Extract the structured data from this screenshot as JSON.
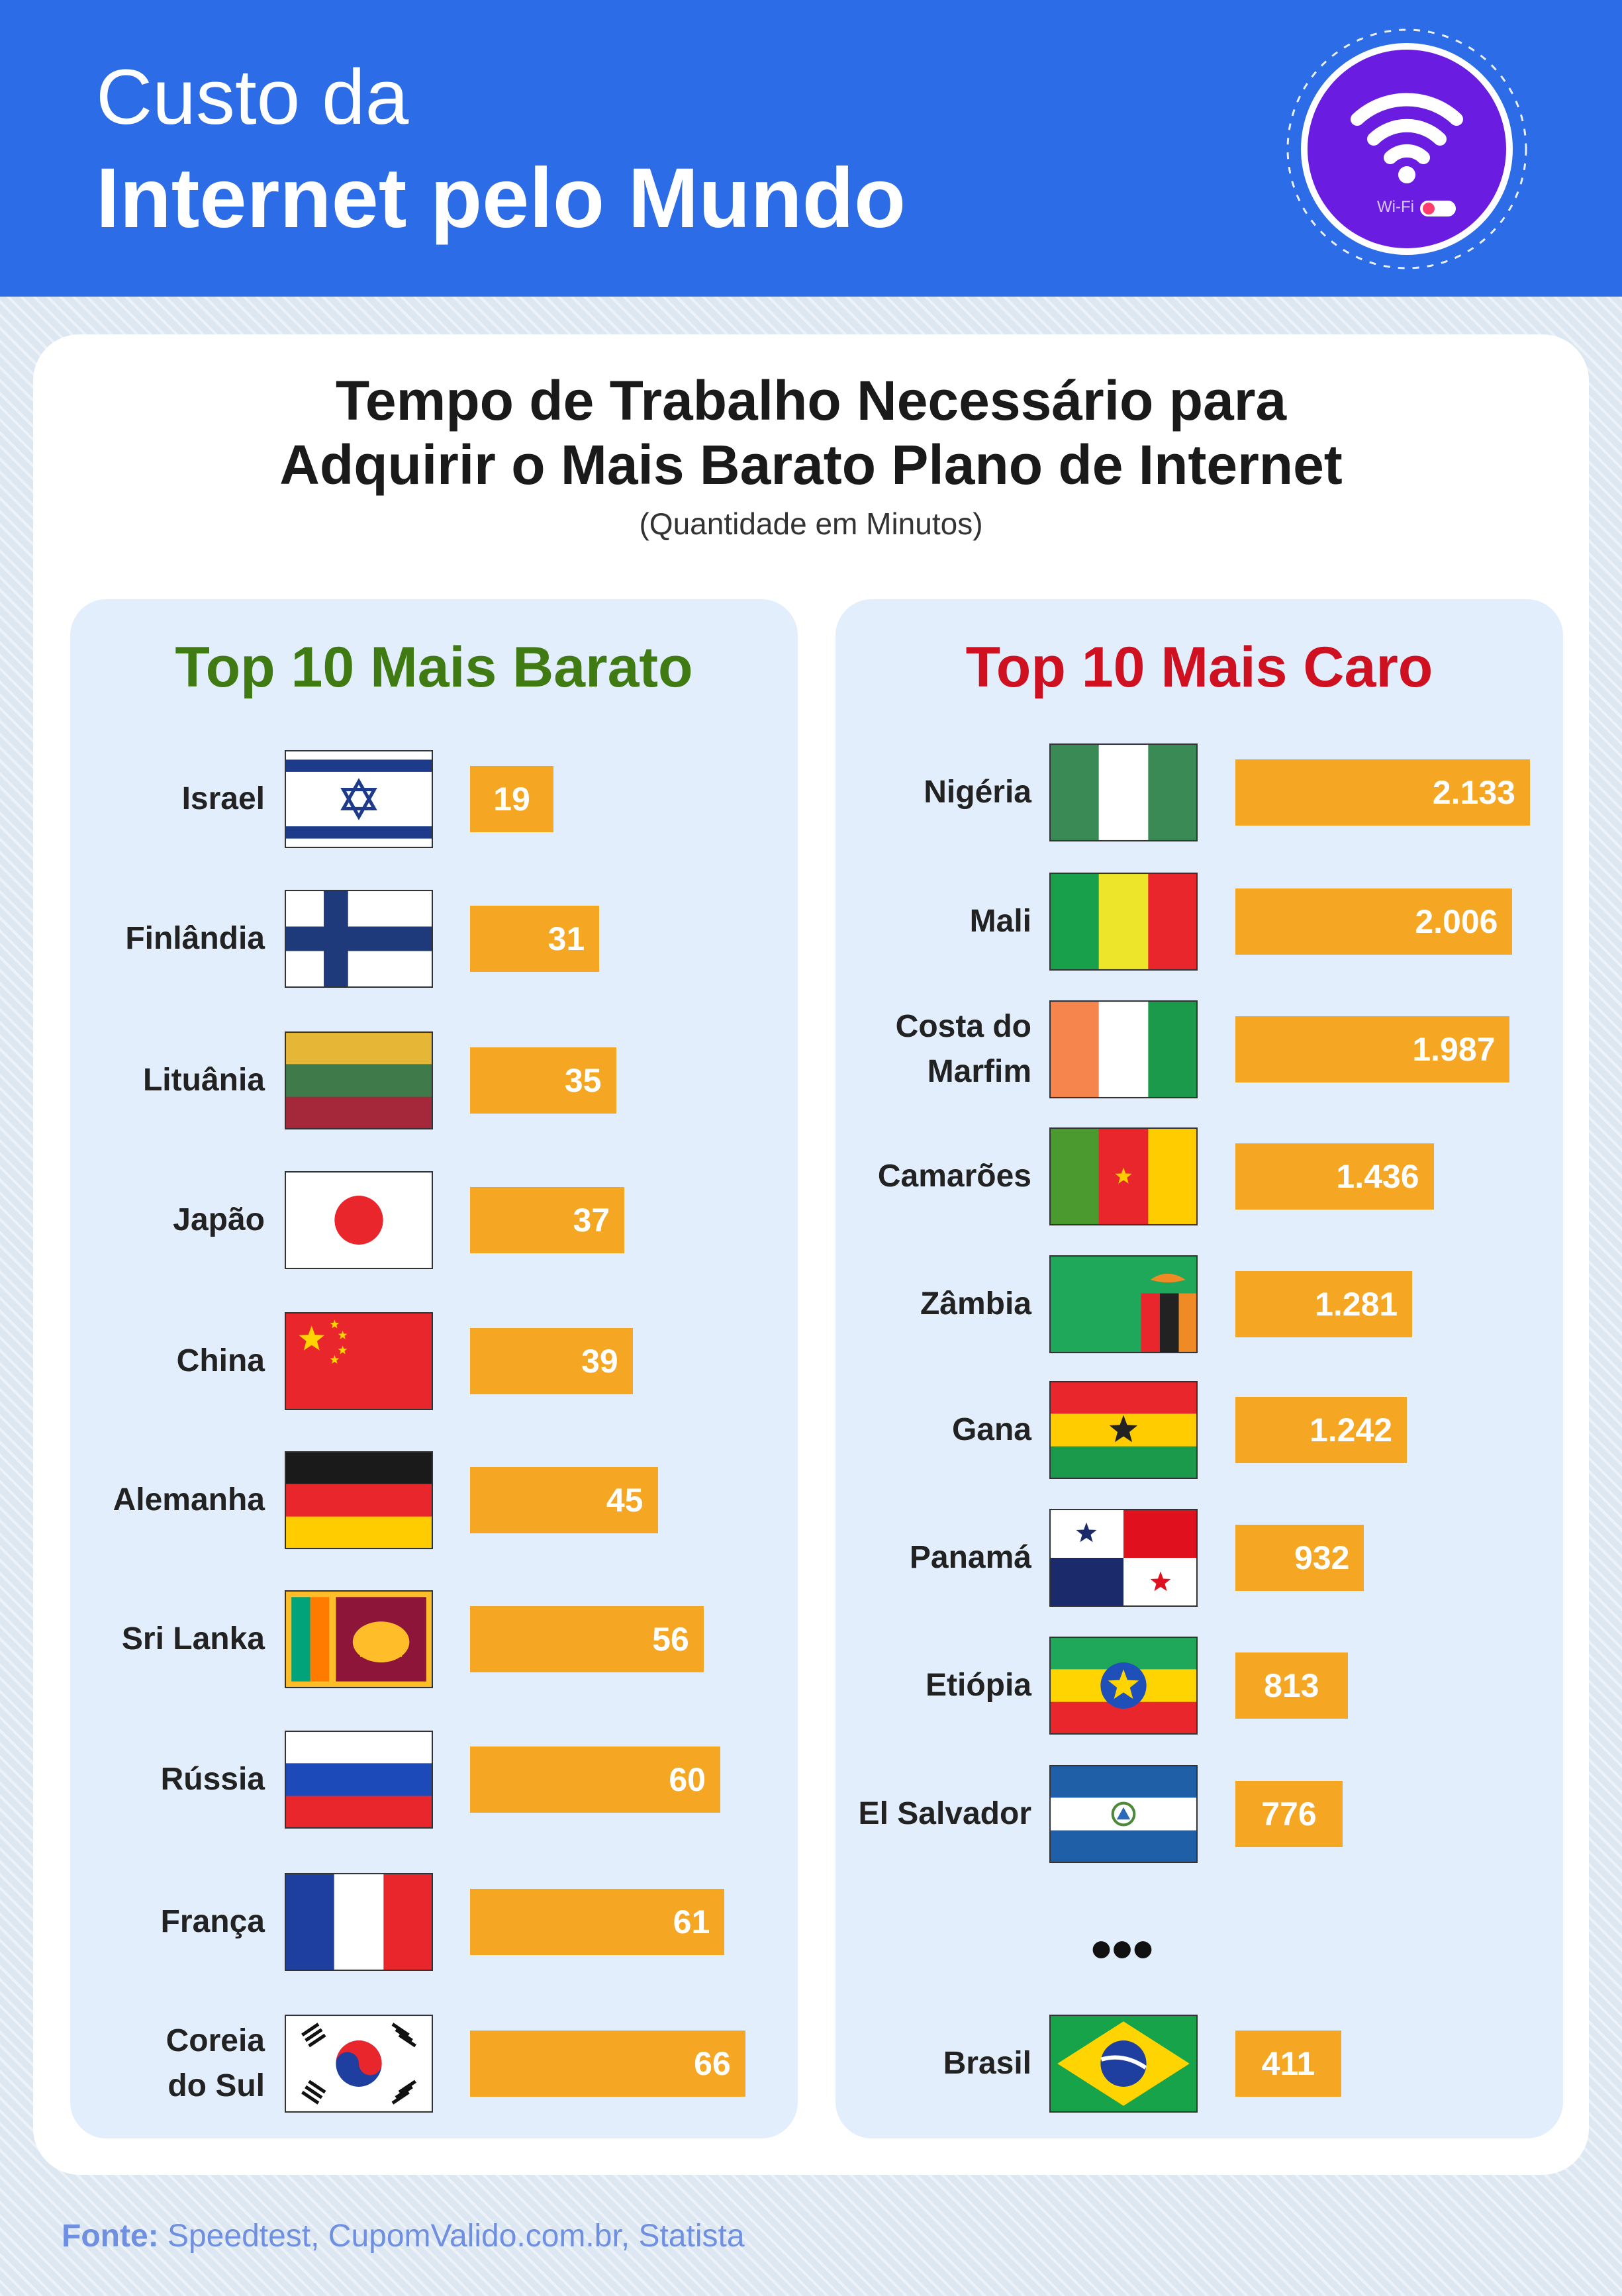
{
  "header": {
    "line1": "Custo da",
    "line2": "Internet pelo Mundo",
    "badge_label": "Wi-Fi"
  },
  "chart": {
    "title_line1": "Tempo de Trabalho Necessário para",
    "title_line2": "Adquirir o Mais Barato Plano de Internet",
    "subtitle": "(Quantidade em Minutos)",
    "cheapest_title": "Top 10 Mais Barato",
    "expensive_title": "Top 10 Mais Caro",
    "ellipsis": "•••",
    "colors": {
      "bar": "#f5a623",
      "cheapest_title": "#3f7a12",
      "expensive_title": "#cf1020",
      "header": "#2c6ce6"
    }
  },
  "footer": {
    "label": "Fonte:",
    "sources": " Speedtest, CupomValido.com.br, Statista"
  },
  "chart_data": [
    {
      "type": "bar",
      "orientation": "horizontal",
      "title": "Top 10 Mais Barato",
      "unit": "Quantidade em Minutos",
      "categories": [
        "Israel",
        "Finlândia",
        "Lituânia",
        "Japão",
        "China",
        "Alemanha",
        "Sri Lanka",
        "Rússia",
        "França",
        "Coreia\ndo Sul"
      ],
      "flags": [
        "israel",
        "finland",
        "lithuania",
        "japan",
        "china",
        "germany",
        "sri-lanka",
        "russia",
        "france",
        "south-korea"
      ],
      "values": [
        19,
        31,
        35,
        37,
        39,
        45,
        56,
        60,
        61,
        66
      ],
      "labels": [
        "19",
        "31",
        "35",
        "37",
        "39",
        "45",
        "56",
        "60",
        "61",
        "66"
      ]
    },
    {
      "type": "bar",
      "orientation": "horizontal",
      "title": "Top 10 Mais Caro",
      "unit": "Quantidade em Minutos",
      "categories": [
        "Nigéria",
        "Mali",
        "Costa do\nMarfim",
        "Camarões",
        "Zâmbia",
        "Gana",
        "Panamá",
        "Etiópia",
        "El Salvador",
        "Brasil"
      ],
      "flags": [
        "nigeria",
        "mali",
        "ivory-coast",
        "cameroon",
        "zambia",
        "ghana",
        "panama",
        "ethiopia",
        "el-salvador",
        "brazil"
      ],
      "values": [
        2133,
        2006,
        1987,
        1436,
        1281,
        1242,
        932,
        813,
        776,
        411
      ],
      "labels": [
        "2.133",
        "2.006",
        "1.987",
        "1.436",
        "1.281",
        "1.242",
        "932",
        "813",
        "776",
        "411"
      ]
    }
  ]
}
